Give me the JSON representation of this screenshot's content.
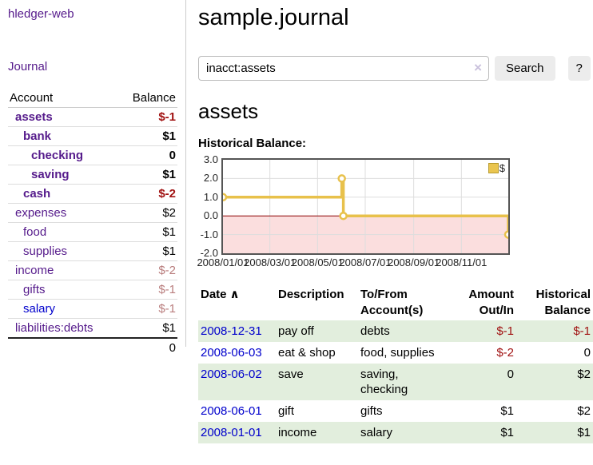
{
  "app": {
    "title": "hledger-web"
  },
  "colors": {
    "link_purple": "#551a8b",
    "link_blue": "#0000cc",
    "neg_strong": "#a11212",
    "neg_muted": "#b97d7d",
    "row_green": "#e2eedd",
    "chart_line": "#e8c14b",
    "chart_marker_fill": "#ffffff",
    "chart_neg_fill": "#fbdede",
    "chart_zero_line": "#8b0000",
    "chart_border": "#555555",
    "chart_grid": "#dddddd",
    "button_bg": "#ececec"
  },
  "sidebar": {
    "nav": [
      {
        "label": "Journal"
      }
    ],
    "table": {
      "headers": [
        "Account",
        "Balance"
      ],
      "rows": [
        {
          "account": "assets",
          "balance": "$-1",
          "depth": 1,
          "bold": true,
          "balance_class": "neg-strong",
          "blue": false
        },
        {
          "account": "bank",
          "balance": "$1",
          "depth": 2,
          "bold": true,
          "balance_class": "",
          "blue": false
        },
        {
          "account": "checking",
          "balance": "0",
          "depth": 3,
          "bold": true,
          "balance_class": "",
          "blue": false
        },
        {
          "account": "saving",
          "balance": "$1",
          "depth": 3,
          "bold": true,
          "balance_class": "",
          "blue": false
        },
        {
          "account": "cash",
          "balance": "$-2",
          "depth": 2,
          "bold": true,
          "balance_class": "neg-strong",
          "blue": false
        },
        {
          "account": "expenses",
          "balance": "$2",
          "depth": 1,
          "bold": false,
          "balance_class": "",
          "blue": false
        },
        {
          "account": "food",
          "balance": "$1",
          "depth": 2,
          "bold": false,
          "balance_class": "",
          "blue": false
        },
        {
          "account": "supplies",
          "balance": "$1",
          "depth": 2,
          "bold": false,
          "balance_class": "",
          "blue": false
        },
        {
          "account": "income",
          "balance": "$-2",
          "depth": 1,
          "bold": false,
          "balance_class": "neg-muted",
          "blue": false
        },
        {
          "account": "gifts",
          "balance": "$-1",
          "depth": 2,
          "bold": false,
          "balance_class": "neg-muted",
          "blue": false
        },
        {
          "account": "salary",
          "balance": "$-1",
          "depth": 2,
          "bold": false,
          "balance_class": "neg-muted",
          "blue": true
        },
        {
          "account": "liabilities:debts",
          "balance": "$1",
          "depth": 1,
          "bold": false,
          "balance_class": "",
          "blue": false
        }
      ],
      "total": "0"
    }
  },
  "main": {
    "title": "sample.journal",
    "search": {
      "value": "inacct:assets",
      "clear_icon": "×",
      "button": "Search",
      "help_button": "?"
    },
    "account_heading": "assets",
    "chart": {
      "title": "Historical Balance:",
      "type": "step-line",
      "legend": "$",
      "ylim": [
        -2.0,
        3.0
      ],
      "yticks": [
        3.0,
        2.0,
        1.0,
        0.0,
        -1.0,
        -2.0
      ],
      "xtick_labels": [
        "2008/01/01",
        "2008/03/01",
        "2008/05/01",
        "2008/07/01",
        "2008/09/01",
        "2008/11/01"
      ],
      "xtick_days": [
        0,
        60,
        121,
        182,
        244,
        305
      ],
      "x_total_days": 365,
      "series": [
        {
          "name": "$",
          "path": [
            [
              0,
              1
            ],
            [
              152,
              1
            ],
            [
              152,
              2
            ],
            [
              154,
              2
            ],
            [
              154,
              0
            ],
            [
              365,
              0
            ],
            [
              365,
              -1
            ]
          ],
          "markers": [
            [
              0,
              1
            ],
            [
              152,
              2
            ],
            [
              154,
              0
            ],
            [
              365,
              -1
            ]
          ]
        }
      ]
    },
    "register": {
      "headers": {
        "date": "Date",
        "sort_icon": "∧",
        "description": "Description",
        "accounts": "To/From Account(s)",
        "amount": "Amount Out/In",
        "balance": "Historical Balance"
      },
      "rows": [
        {
          "date": "2008-12-31",
          "description": "pay off",
          "accounts": "debts",
          "amount": "$-1",
          "balance": "$-1",
          "amount_class": "neg-strong",
          "balance_class": "neg-strong",
          "shaded": true
        },
        {
          "date": "2008-06-03",
          "description": "eat & shop",
          "accounts": "food, supplies",
          "amount": "$-2",
          "balance": "0",
          "amount_class": "neg-strong",
          "balance_class": "",
          "shaded": false
        },
        {
          "date": "2008-06-02",
          "description": "save",
          "accounts": "saving, checking",
          "amount": "0",
          "balance": "$2",
          "amount_class": "",
          "balance_class": "",
          "shaded": true
        },
        {
          "date": "2008-06-01",
          "description": "gift",
          "accounts": "gifts",
          "amount": "$1",
          "balance": "$2",
          "amount_class": "",
          "balance_class": "",
          "shaded": false
        },
        {
          "date": "2008-01-01",
          "description": "income",
          "accounts": "salary",
          "amount": "$1",
          "balance": "$1",
          "amount_class": "",
          "balance_class": "",
          "shaded": true
        }
      ]
    }
  }
}
